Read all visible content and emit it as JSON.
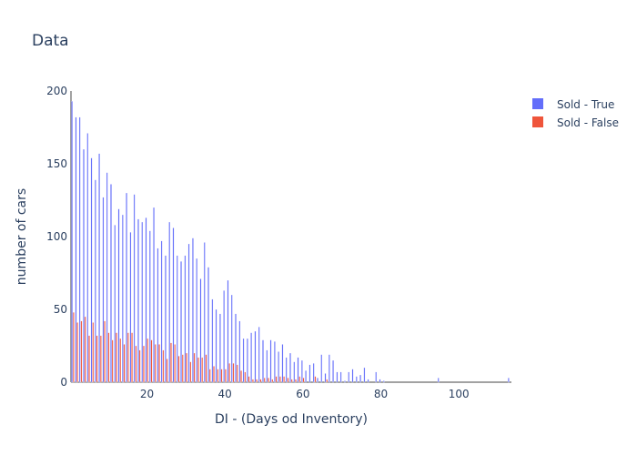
{
  "chart_data": {
    "type": "bar",
    "title": "Data",
    "xlabel": "DI - (Days od Inventory)",
    "ylabel": "number of cars",
    "xlim": [
      0.5,
      113.5
    ],
    "ylim": [
      0,
      200
    ],
    "xticks": [
      20,
      40,
      60,
      80,
      100
    ],
    "yticks": [
      0,
      50,
      100,
      150,
      200
    ],
    "grid": false,
    "legend_position": "top-right",
    "series": [
      {
        "name": "Sold - True",
        "color": "#636efa",
        "x": [
          1,
          2,
          3,
          4,
          5,
          6,
          7,
          8,
          9,
          10,
          11,
          12,
          13,
          14,
          15,
          16,
          17,
          18,
          19,
          20,
          21,
          22,
          23,
          24,
          25,
          26,
          27,
          28,
          29,
          30,
          31,
          32,
          33,
          34,
          35,
          36,
          37,
          38,
          39,
          40,
          41,
          42,
          43,
          44,
          45,
          46,
          47,
          48,
          49,
          50,
          51,
          52,
          53,
          54,
          55,
          56,
          57,
          58,
          59,
          60,
          61,
          62,
          63,
          64,
          65,
          66,
          67,
          68,
          69,
          70,
          71,
          72,
          73,
          74,
          75,
          76,
          77,
          78,
          79,
          80,
          81,
          94,
          95,
          112,
          113
        ],
        "values": [
          193,
          182,
          182,
          160,
          171,
          154,
          139,
          157,
          127,
          144,
          136,
          108,
          119,
          115,
          130,
          103,
          129,
          112,
          110,
          113,
          104,
          120,
          92,
          97,
          87,
          110,
          106,
          87,
          83,
          87,
          95,
          99,
          85,
          71,
          96,
          79,
          57,
          50,
          47,
          63,
          70,
          60,
          47,
          42,
          30,
          30,
          34,
          35,
          38,
          29,
          22,
          29,
          28,
          21,
          26,
          17,
          20,
          14,
          17,
          15,
          8,
          12,
          13,
          3,
          19,
          6,
          19,
          15,
          7,
          7,
          1,
          7,
          9,
          4,
          5,
          10,
          2,
          0,
          7,
          2,
          1,
          0,
          3,
          0,
          3
        ]
      },
      {
        "name": "Sold - False",
        "color": "#ef553b",
        "x": [
          1,
          2,
          3,
          4,
          5,
          6,
          7,
          8,
          9,
          10,
          11,
          12,
          13,
          14,
          15,
          16,
          17,
          18,
          19,
          20,
          21,
          22,
          23,
          24,
          25,
          26,
          27,
          28,
          29,
          30,
          31,
          32,
          33,
          34,
          35,
          36,
          37,
          38,
          39,
          40,
          41,
          42,
          43,
          44,
          45,
          46,
          47,
          48,
          49,
          50,
          51,
          52,
          53,
          54,
          55,
          56,
          57,
          58,
          59,
          60,
          61,
          62,
          63,
          64,
          65,
          66,
          67,
          68,
          69,
          70,
          71,
          72,
          73,
          74,
          75,
          76,
          77,
          78,
          79,
          80,
          81,
          94,
          95,
          112,
          113
        ],
        "values": [
          48,
          41,
          42,
          45,
          32,
          41,
          32,
          32,
          42,
          34,
          29,
          34,
          30,
          26,
          34,
          34,
          25,
          22,
          25,
          30,
          29,
          26,
          26,
          22,
          16,
          27,
          26,
          18,
          19,
          20,
          14,
          20,
          17,
          17,
          19,
          9,
          11,
          9,
          9,
          9,
          13,
          13,
          12,
          8,
          7,
          4,
          2,
          2,
          2,
          3,
          3,
          2,
          4,
          4,
          4,
          3,
          2,
          2,
          4,
          3,
          0,
          0,
          4,
          0,
          0,
          2,
          0,
          0,
          0,
          0,
          0,
          0,
          0,
          0,
          0,
          0,
          0,
          0,
          0,
          0,
          0,
          0,
          0,
          0,
          0
        ]
      }
    ]
  }
}
